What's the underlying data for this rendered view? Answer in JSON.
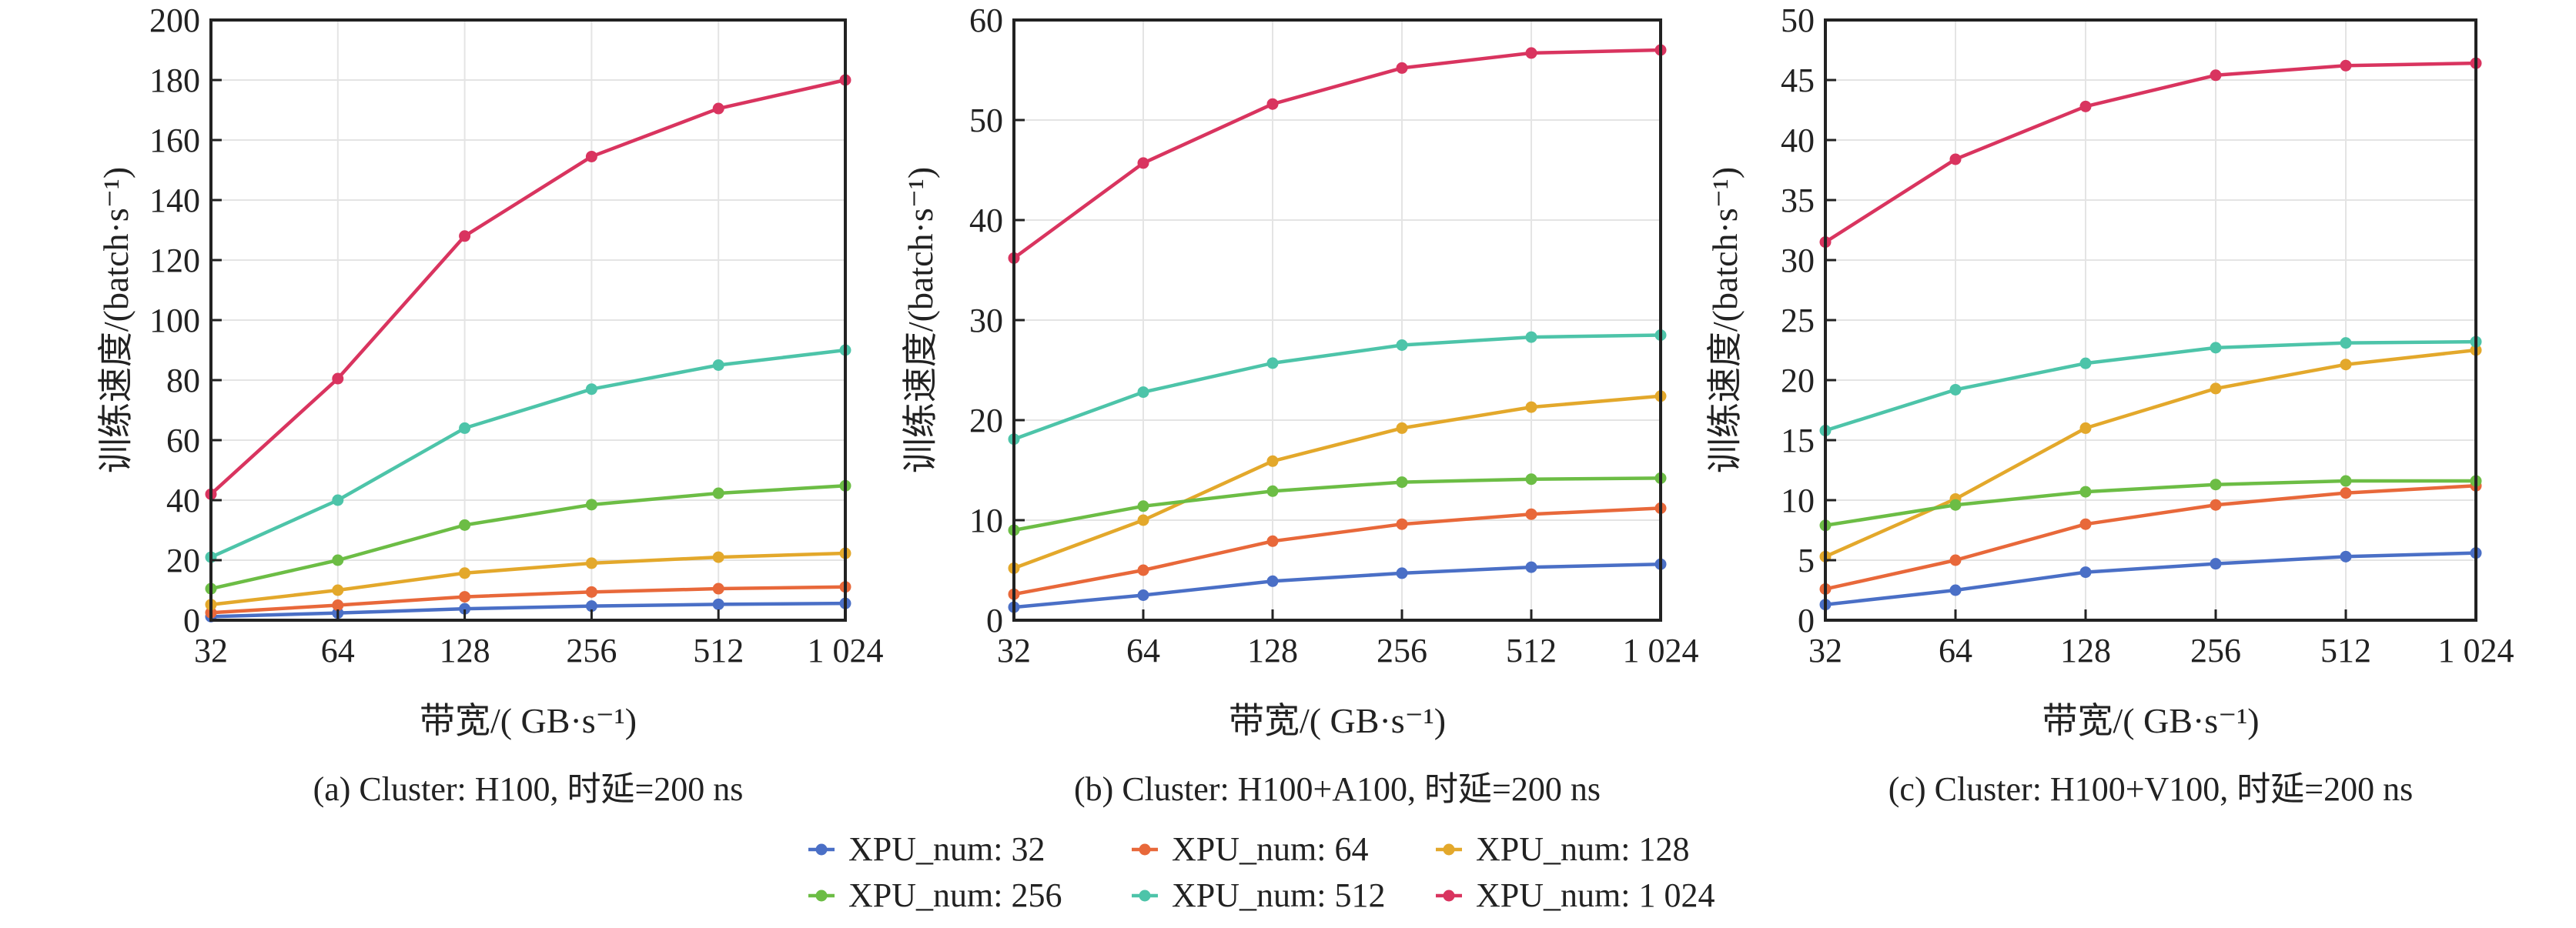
{
  "chart_data": [
    {
      "type": "line",
      "caption": "(a)  Cluster: H100, 时延=200 ns",
      "xlabel": "带宽/( GB·s⁻¹)",
      "ylabel": "训练速度/(batch·s⁻¹)",
      "x": [
        32,
        64,
        128,
        256,
        512,
        1024
      ],
      "x_tick_labels": [
        "32",
        "64",
        "128",
        "256",
        "512",
        "1 024"
      ],
      "x_scale": "log2",
      "ylim": [
        0,
        200
      ],
      "y_ticks": [
        0,
        20,
        40,
        60,
        80,
        100,
        120,
        140,
        160,
        180,
        200
      ],
      "grid": true,
      "series": [
        {
          "name": "XPU_num: 32",
          "values": [
            1.2,
            2.4,
            3.8,
            4.7,
            5.3,
            5.6
          ]
        },
        {
          "name": "XPU_num: 64",
          "values": [
            2.5,
            5.0,
            7.8,
            9.4,
            10.5,
            11.1
          ]
        },
        {
          "name": "XPU_num: 128",
          "values": [
            5.2,
            10.0,
            15.7,
            19.0,
            21.0,
            22.3
          ]
        },
        {
          "name": "XPU_num: 256",
          "values": [
            10.5,
            20.0,
            31.7,
            38.5,
            42.3,
            44.8
          ]
        },
        {
          "name": "XPU_num: 512",
          "values": [
            21.0,
            40.0,
            64.0,
            77.0,
            85.0,
            90.0
          ]
        },
        {
          "name": "XPU_num: 1 024",
          "values": [
            42.0,
            80.5,
            128.0,
            154.5,
            170.5,
            180.0
          ]
        }
      ]
    },
    {
      "type": "line",
      "caption": "(b)  Cluster: H100+A100, 时延=200 ns",
      "xlabel": "带宽/( GB·s⁻¹)",
      "ylabel": "训练速度/(batch·s⁻¹)",
      "x": [
        32,
        64,
        128,
        256,
        512,
        1024
      ],
      "x_tick_labels": [
        "32",
        "64",
        "128",
        "256",
        "512",
        "1 024"
      ],
      "x_scale": "log2",
      "ylim": [
        0,
        60
      ],
      "y_ticks": [
        0,
        10,
        20,
        30,
        40,
        50,
        60
      ],
      "grid": true,
      "series": [
        {
          "name": "XPU_num: 32",
          "values": [
            1.3,
            2.5,
            3.9,
            4.7,
            5.3,
            5.6
          ]
        },
        {
          "name": "XPU_num: 64",
          "values": [
            2.6,
            5.0,
            7.9,
            9.6,
            10.6,
            11.2
          ]
        },
        {
          "name": "XPU_num: 128",
          "values": [
            5.2,
            10.0,
            15.9,
            19.2,
            21.3,
            22.4
          ]
        },
        {
          "name": "XPU_num: 256",
          "values": [
            9.0,
            11.4,
            12.9,
            13.8,
            14.1,
            14.2
          ]
        },
        {
          "name": "XPU_num: 512",
          "values": [
            18.1,
            22.8,
            25.7,
            27.5,
            28.3,
            28.5
          ]
        },
        {
          "name": "XPU_num: 1 024",
          "values": [
            36.2,
            45.7,
            51.6,
            55.2,
            56.7,
            57.0
          ]
        }
      ]
    },
    {
      "type": "line",
      "caption": "(c)  Cluster: H100+V100, 时延=200 ns",
      "xlabel": "带宽/( GB·s⁻¹)",
      "ylabel": "训练速度/(batch·s⁻¹)",
      "x": [
        32,
        64,
        128,
        256,
        512,
        1024
      ],
      "x_tick_labels": [
        "32",
        "64",
        "128",
        "256",
        "512",
        "1 024"
      ],
      "x_scale": "log2",
      "ylim": [
        0,
        50
      ],
      "y_ticks": [
        0,
        5,
        10,
        15,
        20,
        25,
        30,
        35,
        40,
        45,
        50
      ],
      "grid": true,
      "series": [
        {
          "name": "XPU_num: 32",
          "values": [
            1.3,
            2.5,
            4.0,
            4.7,
            5.3,
            5.6
          ]
        },
        {
          "name": "XPU_num: 64",
          "values": [
            2.6,
            5.0,
            8.0,
            9.6,
            10.6,
            11.2
          ]
        },
        {
          "name": "XPU_num: 128",
          "values": [
            5.3,
            10.1,
            16.0,
            19.3,
            21.3,
            22.5
          ]
        },
        {
          "name": "XPU_num: 256",
          "values": [
            7.9,
            9.6,
            10.7,
            11.3,
            11.6,
            11.6
          ]
        },
        {
          "name": "XPU_num: 512",
          "values": [
            15.8,
            19.2,
            21.4,
            22.7,
            23.1,
            23.2
          ]
        },
        {
          "name": "XPU_num: 1 024",
          "values": [
            31.5,
            38.4,
            42.8,
            45.4,
            46.2,
            46.4
          ]
        }
      ]
    }
  ],
  "legend": {
    "placement": "bottom-center",
    "entries": [
      "XPU_num: 32",
      "XPU_num: 64",
      "XPU_num: 128",
      "XPU_num: 256",
      "XPU_num: 512",
      "XPU_num: 1 024"
    ]
  },
  "colors": [
    "#4a6fc6",
    "#e8683a",
    "#e3a82b",
    "#6cbd45",
    "#4dc4a9",
    "#d9345f"
  ]
}
